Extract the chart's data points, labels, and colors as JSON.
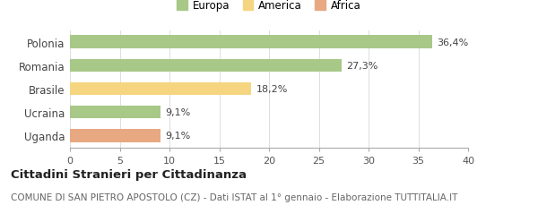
{
  "categories": [
    "Uganda",
    "Ucraina",
    "Brasile",
    "Romania",
    "Polonia"
  ],
  "values": [
    9.1,
    9.1,
    18.2,
    27.3,
    36.4
  ],
  "labels": [
    "9,1%",
    "9,1%",
    "18,2%",
    "27,3%",
    "36,4%"
  ],
  "colors": [
    "#e8a882",
    "#a8c888",
    "#f5d580",
    "#a8c888",
    "#a8c888"
  ],
  "legend_items": [
    {
      "label": "Europa",
      "color": "#a8c888"
    },
    {
      "label": "America",
      "color": "#f5d580"
    },
    {
      "label": "Africa",
      "color": "#e8a882"
    }
  ],
  "xlim": [
    0,
    40
  ],
  "xticks": [
    0,
    5,
    10,
    15,
    20,
    25,
    30,
    35,
    40
  ],
  "title_bold": "Cittadini Stranieri per Cittadinanza",
  "subtitle": "COMUNE DI SAN PIETRO APOSTOLO (CZ) - Dati ISTAT al 1° gennaio - Elaborazione TUTTITALIA.IT",
  "background_color": "#ffffff",
  "bar_height": 0.55,
  "label_fontsize": 8,
  "ytick_fontsize": 8.5,
  "xtick_fontsize": 8,
  "legend_fontsize": 8.5,
  "title_fontsize": 9.5,
  "subtitle_fontsize": 7.5
}
